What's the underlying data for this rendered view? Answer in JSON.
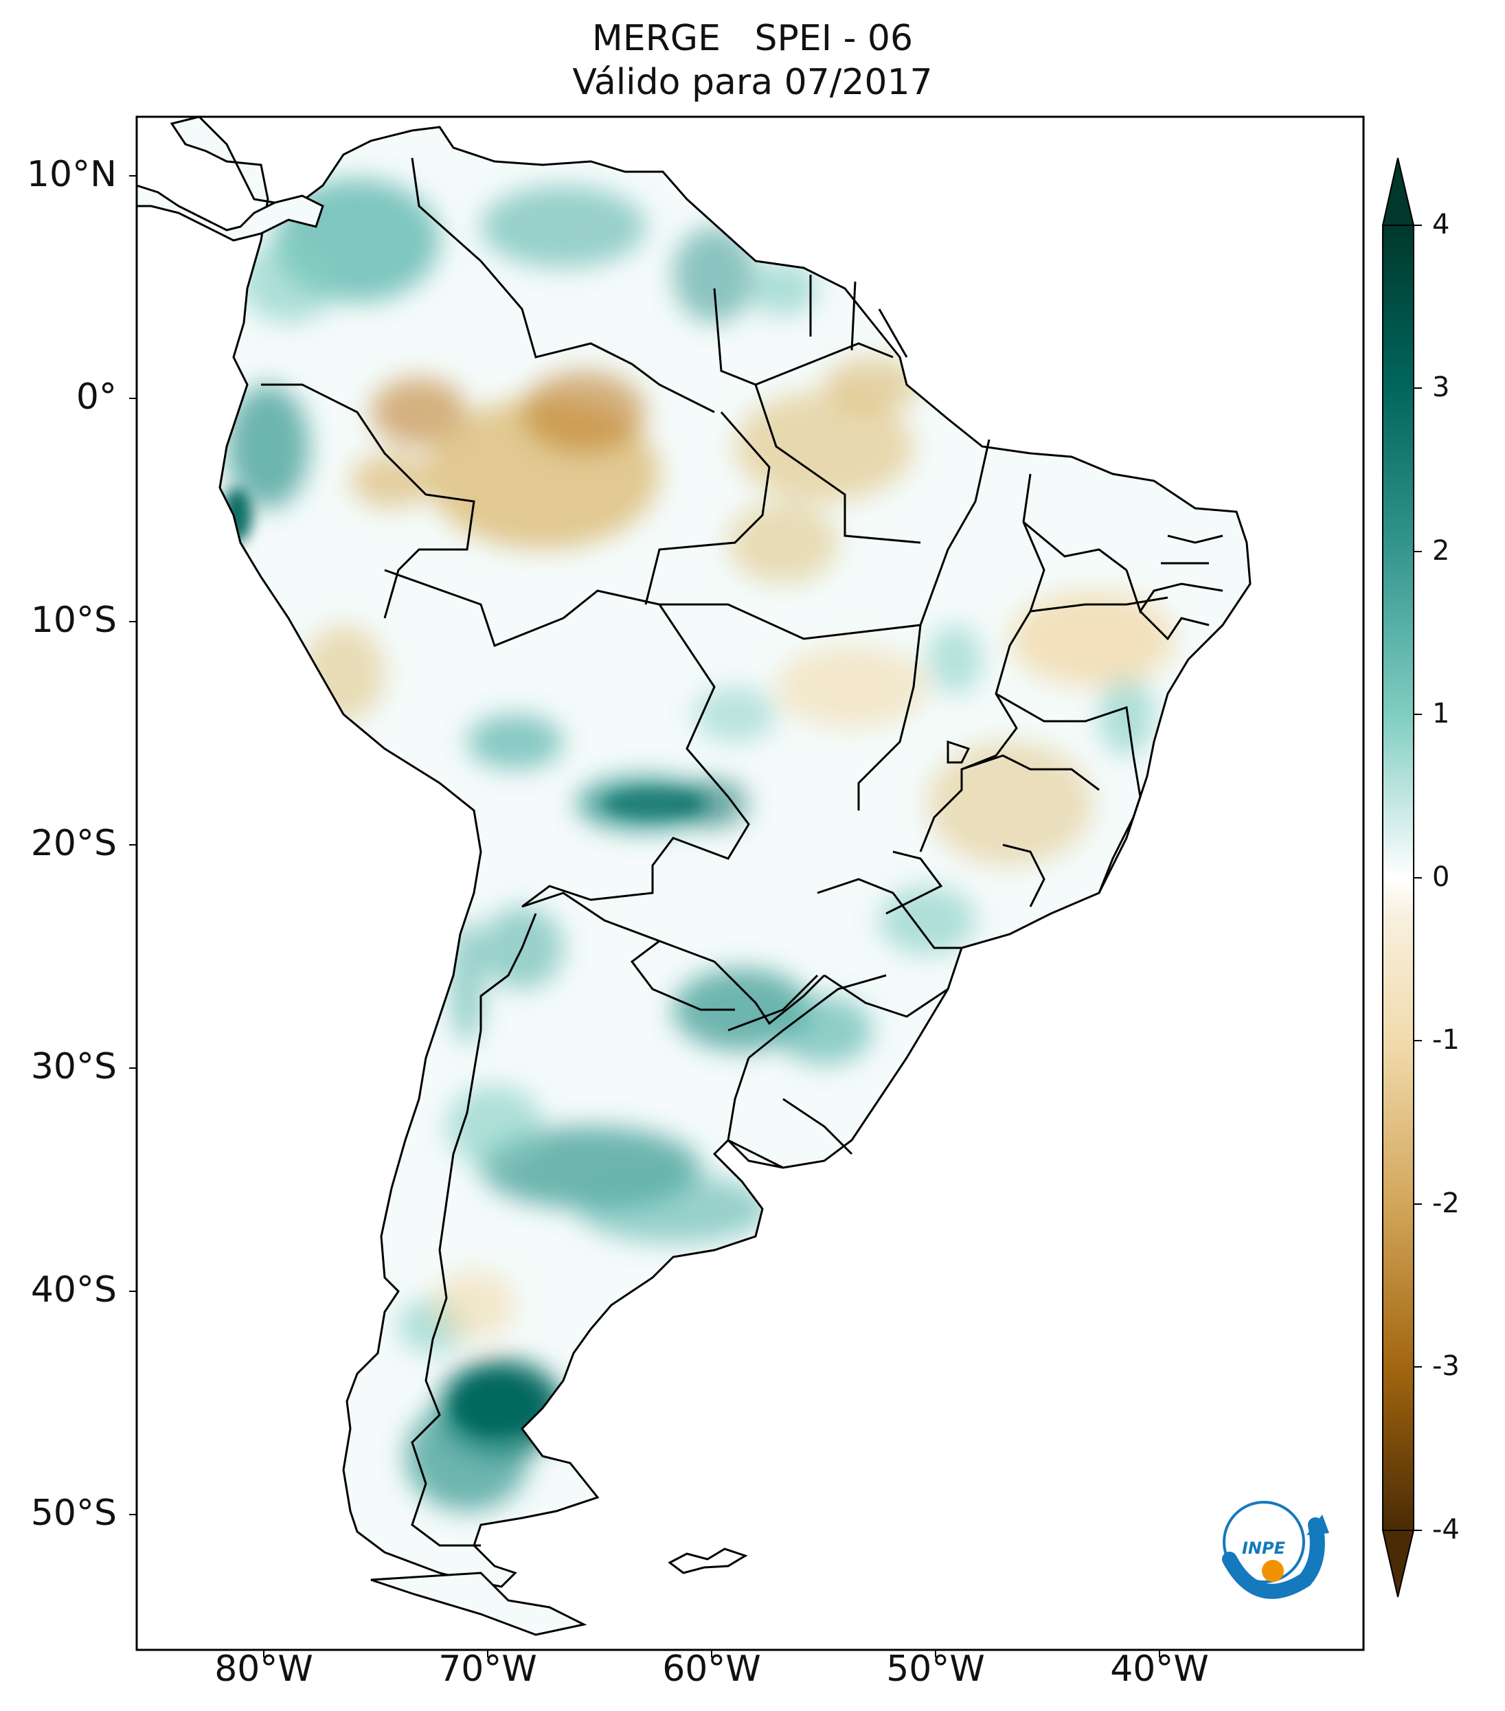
{
  "title": {
    "line1": "MERGE   SPEI - 06",
    "line2": "Válido para 07/2017"
  },
  "latitude_labels": [
    "10°N",
    "0°",
    "10°S",
    "20°S",
    "30°S",
    "40°S",
    "50°S"
  ],
  "longitude_labels": [
    "80°W",
    "70°W",
    "60°W",
    "50°W",
    "40°W"
  ],
  "colorbar": {
    "ticks": [
      "4",
      "3",
      "2",
      "1",
      "0",
      "-1",
      "-2",
      "-3",
      "-4"
    ],
    "colors": {
      "wet_max": "#00382b",
      "wet": "#01665e",
      "wet_mid": "#5ab4ac",
      "wet_light": "#c7eae5",
      "neutral": "#ffffff",
      "dry_light": "#f6e8c3",
      "dry_mid": "#d8b365",
      "dry": "#8c510a",
      "dry_max": "#4a2b05"
    }
  },
  "logo": {
    "text": "INPE",
    "colors": {
      "arc": "#1479bd",
      "dot": "#f39200"
    }
  }
}
